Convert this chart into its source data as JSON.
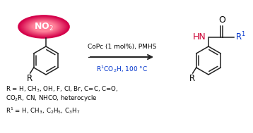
{
  "bg_color": "#ffffff",
  "ellipse_color_outer": "#d4004a",
  "ellipse_color_inner": "#ff5088",
  "no2_text": "NO$_2$",
  "reaction_line1": "CoPc (1 mol%), PMHS",
  "reaction_line2": "R$^1$CO$_2$H, 100 °C",
  "footnote1": "R = H, CH$_3$, OH, F, Cl, Br, C=C, C=O,",
  "footnote2": "CO$_2$R, CN, NHCO, heterocycle",
  "footnote3": "R$^1$ = H, CH$_3$, C$_2$H$_5$, C$_3$H$_7$",
  "black_color": "#000000",
  "blue_color": "#0033cc",
  "red_color": "#cc0033",
  "bond_color": "#222222",
  "arrow_color": "#222222",
  "font_size_rxn": 6.5,
  "font_size_footnote": 6.2,
  "font_size_atom": 8.5,
  "font_size_no2": 9.0
}
